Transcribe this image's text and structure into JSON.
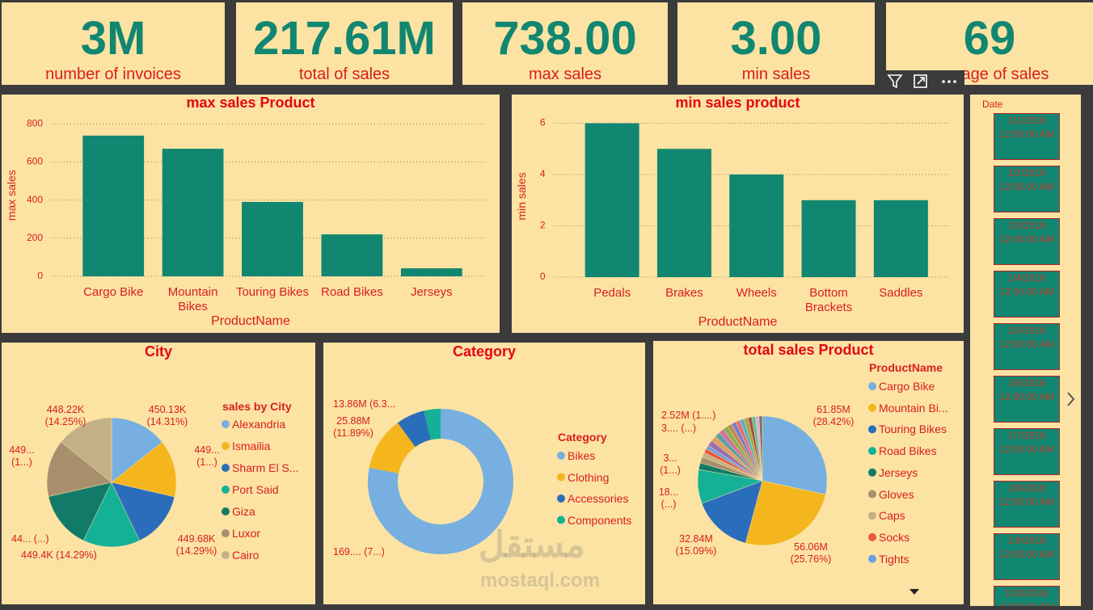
{
  "cards": [
    {
      "value": "3M",
      "label": "number of invoices"
    },
    {
      "value": "217.61M",
      "label": "total of sales"
    },
    {
      "value": "738.00",
      "label": "max sales"
    },
    {
      "value": "3.00",
      "label": "min sales"
    },
    {
      "value": "69",
      "label": "average of sales"
    }
  ],
  "chart_data": [
    {
      "type": "bar",
      "title": "max sales Product",
      "x_label": "ProductName",
      "y_label": "max sales",
      "categories": [
        "Cargo Bike",
        "Mountain Bikes",
        "Touring Bikes",
        "Road Bikes",
        "Jerseys"
      ],
      "values": [
        738,
        669,
        390,
        220,
        42
      ],
      "color": "#118670",
      "ylim": [
        0,
        850
      ],
      "yticks": [
        0,
        200,
        400,
        600,
        800
      ],
      "grid": true
    },
    {
      "type": "bar",
      "title": "min sales product",
      "x_label": "ProductName",
      "y_label": "min sales",
      "categories": [
        "Pedals",
        "Brakes",
        "Wheels",
        "Bottom Brackets",
        "Saddles"
      ],
      "values": [
        6,
        5,
        4,
        3,
        3
      ],
      "color": "#118670",
      "ylim": [
        0,
        6.3
      ],
      "yticks": [
        0,
        2,
        4,
        6
      ],
      "grid": true
    },
    {
      "type": "pie",
      "title": "City",
      "legend_title": "sales by City",
      "categories": [
        "Alexandria",
        "Ismailia",
        "Sharm El S...",
        "Port Said",
        "Giza",
        "Luxor",
        "Cairo"
      ],
      "values": [
        450130,
        449900,
        449680,
        449400,
        449500,
        449200,
        448220
      ],
      "value_labels": [
        "450.13K (14.31%)",
        "449... (1...)",
        "449.68K (14.29%)",
        "449.4K (14.29%)",
        "44... (...)",
        "449... (1...)",
        "448.22K (14.25%)"
      ],
      "colors": [
        "#76afe0",
        "#f5b51c",
        "#2a6ebb",
        "#14b197",
        "#127a68",
        "#a8906e",
        "#c4b086"
      ]
    },
    {
      "type": "donut",
      "title": "Category",
      "legend_title": "Category",
      "categories": [
        "Bikes",
        "Clothing",
        "Accessories",
        "Components"
      ],
      "values": [
        169900000,
        25880000,
        13860000,
        8000000
      ],
      "value_labels": [
        "169.... (7...)",
        "25.88M (11.89%)",
        "13.86M (6.3...",
        null
      ],
      "colors": [
        "#76afe0",
        "#f5b51c",
        "#2a6ebb",
        "#14b197"
      ]
    },
    {
      "type": "pie",
      "title": "total sales Product",
      "legend_title": "ProductName",
      "categories": [
        "Cargo Bike",
        "Mountain Bi...",
        "Touring Bikes",
        "Road Bikes",
        "Jerseys",
        "Gloves",
        "Caps",
        "Socks",
        "Tights",
        null,
        null,
        null,
        null,
        null,
        null,
        null,
        null,
        null,
        null,
        null,
        null,
        null,
        null
      ],
      "values": [
        61850000,
        56060000,
        32840000,
        18500000,
        3600000,
        3400000,
        2520000,
        2300000,
        2100000,
        3200000,
        3000000,
        2900000,
        2800000,
        2700000,
        2600000,
        2500000,
        2400000,
        2300000,
        2200000,
        2100000,
        2000000,
        1900000,
        1800000
      ],
      "value_labels": [
        "61.85M (28.42%)",
        "56.06M (25.76%)",
        "32.84M (15.09%)",
        "18... (...)",
        "3... (1...)",
        "3.... (...)",
        "2.52M (1....)",
        null,
        null,
        null,
        null,
        null,
        null,
        null,
        null,
        null,
        null,
        null,
        null,
        null,
        null,
        null,
        null
      ],
      "colors": [
        "#76afe0",
        "#f5b51c",
        "#2a6ebb",
        "#14b197",
        "#127a68",
        "#a8906e",
        "#c4b086",
        "#e8593f",
        "#6f9ee0",
        "#9b6fb0",
        "#e0a060",
        "#5aa0a8",
        "#d070a0",
        "#88b050",
        "#c08a5a",
        "#7a7ad0",
        "#e07070",
        "#50b0d0",
        "#b0a040",
        "#a05050",
        "#60c090",
        "#d0b0e0",
        "#807060"
      ]
    }
  ],
  "slicer": {
    "title": "Date",
    "items": [
      "1/1/2016 12:00:00 AM",
      "1/2/2016 12:00:00 AM",
      "1/3/2016 12:00:00 AM",
      "1/4/2016 12:00:00 AM",
      "1/5/2016 12:00:00 AM",
      "1/6/2016 12:00:00 AM",
      "1/7/2016 12:00:00 AM",
      "1/8/2016 12:00:00 AM",
      "1/9/2016 12:00:00 AM",
      "1/10/2016 12:00:00 AM"
    ]
  },
  "watermark": {
    "arabic": "مستقل",
    "latin": "mostaql.com"
  }
}
